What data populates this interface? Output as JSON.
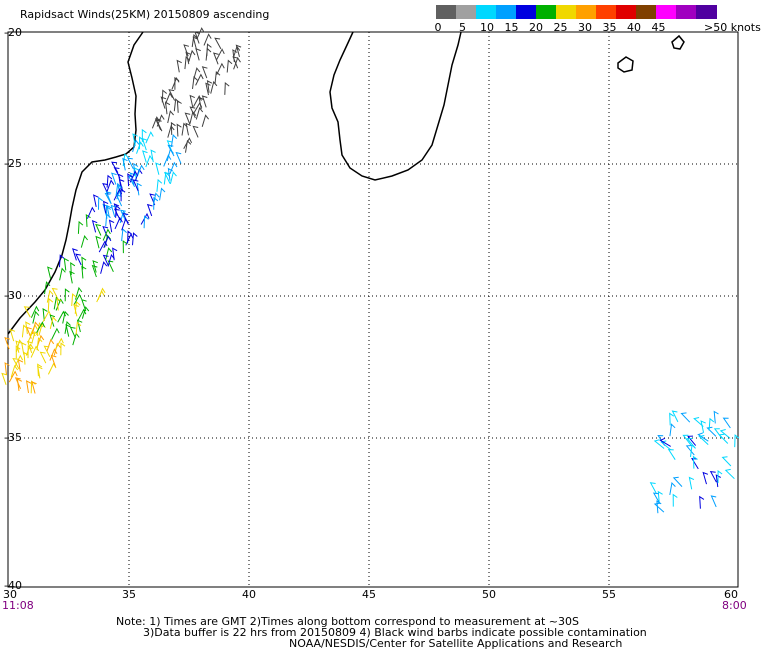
{
  "title": "Rapidsact Winds(25KM) 20150809 ascending",
  "legend": {
    "colors": [
      "#606060",
      "#a0a0a0",
      "#00d8ff",
      "#00a0ff",
      "#0000e0",
      "#00b000",
      "#f0d800",
      "#ffa000",
      "#ff4000",
      "#e00000",
      "#804000",
      "#ff00ff",
      "#a000c0",
      "#5000a0"
    ],
    "labels": [
      "0",
      "5",
      "10",
      "15",
      "20",
      "25",
      "30",
      "35",
      "40",
      "45",
      ">50 knots"
    ]
  },
  "axes": {
    "lat_labels": [
      "-20",
      "-25",
      "-30",
      "-35",
      "-40"
    ],
    "lon_labels": [
      "30",
      "35",
      "40",
      "45",
      "50",
      "55",
      "60"
    ]
  },
  "times": {
    "left": "11:08",
    "right": "8:00"
  },
  "notes": {
    "line1": "Note: 1) Times are GMT 2)Times along bottom correspond to measurement at ~30S",
    "line2": "3)Data buffer is 22 hrs from 20150809 4) Black wind barbs indicate possible contamination",
    "line3": "NOAA/NESDIS/Center for Satellite Applications and Research"
  }
}
